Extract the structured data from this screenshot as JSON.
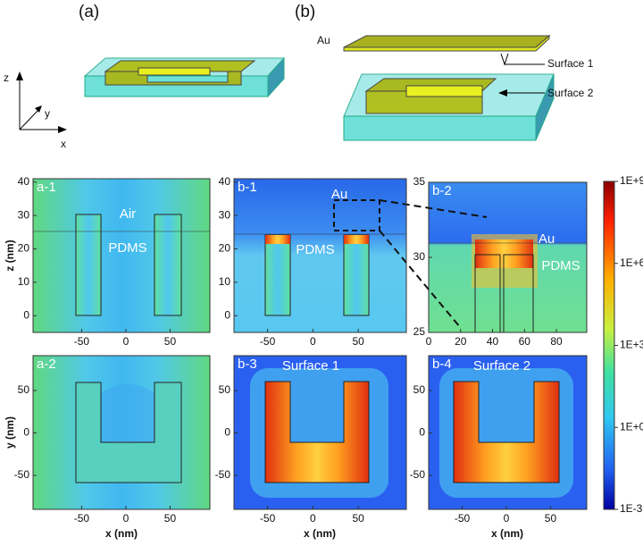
{
  "top": {
    "panel_a": "(a)",
    "panel_b": "(b)",
    "axis_z": "z",
    "axis_y": "y",
    "axis_x": "x",
    "au": "Au",
    "surface_1": "Surface 1",
    "surface_2": "Surface 2"
  },
  "maps": [
    {
      "label": "a-1",
      "annotations": [
        "Air",
        "PDMS"
      ],
      "xlim": [
        -105,
        95
      ],
      "ylim": [
        -5,
        41
      ],
      "xticks": [
        -50,
        0,
        50
      ],
      "yticks": [
        0,
        10,
        20,
        30,
        40
      ]
    },
    {
      "label": "b-1",
      "annotations": [
        "Au",
        "PDMS"
      ],
      "xlim": [
        -87,
        103
      ],
      "ylim": [
        -5,
        41
      ],
      "xticks": [
        -50,
        0,
        50
      ],
      "yticks": [
        0,
        10,
        20,
        30,
        40
      ]
    },
    {
      "label": "b-2",
      "annotations": [
        "Au",
        "PDMS"
      ],
      "xlim": [
        0,
        99
      ],
      "ylim": [
        25,
        35
      ],
      "xticks": [
        0,
        20,
        40,
        60,
        80
      ],
      "yticks": [
        25,
        30,
        35
      ]
    },
    {
      "label": "a-2",
      "annotations": [],
      "xlim": [
        -105,
        95
      ],
      "ylim": [
        -90,
        91
      ],
      "xticks": [
        -50,
        0,
        50
      ],
      "yticks": [
        -50,
        0,
        50
      ]
    },
    {
      "label": "b-3",
      "annotations": [
        "Surface 1"
      ],
      "xlim": [
        -87,
        103
      ],
      "ylim": [
        -90,
        91
      ],
      "xticks": [
        -50,
        0,
        50
      ],
      "yticks": [
        -50,
        0,
        50
      ]
    },
    {
      "label": "b-4",
      "annotations": [
        "Surface 2"
      ],
      "xlim": [
        -88,
        91
      ],
      "ylim": [
        -90,
        91
      ],
      "xticks": [
        -50,
        0,
        50
      ],
      "yticks": [
        -50,
        0,
        50
      ]
    }
  ],
  "y_labels": [
    "z (nm)",
    "y (nm)"
  ],
  "x_label": "x (nm)",
  "colorbar": {
    "ticks": [
      "1E+9",
      "1E+6",
      "1E+3",
      "1E+0",
      "1E-3"
    ]
  }
}
